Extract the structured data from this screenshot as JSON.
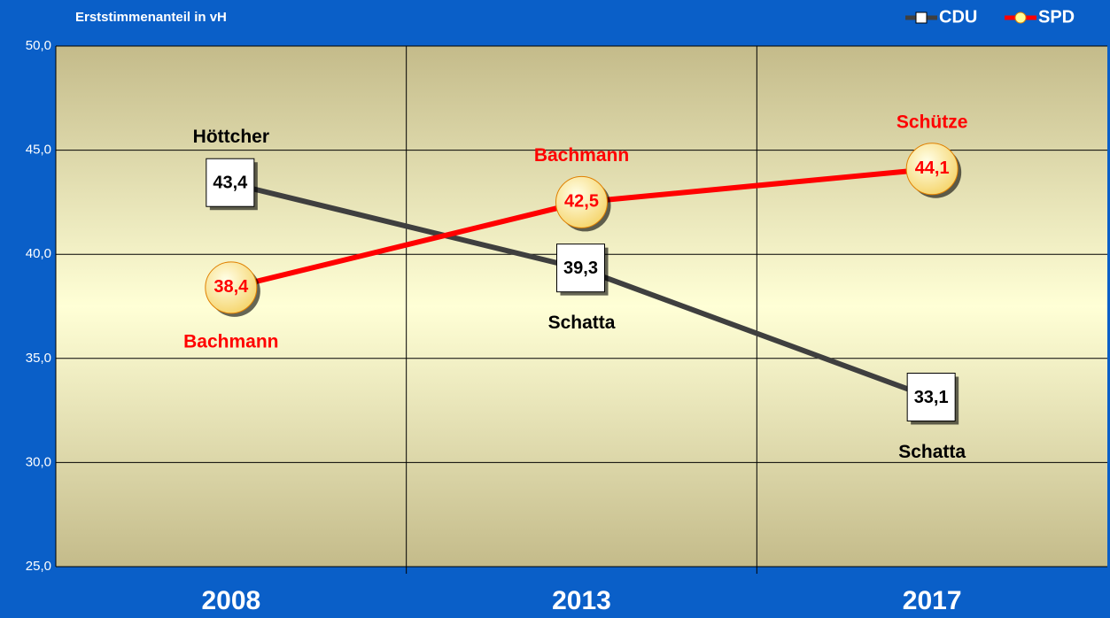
{
  "chart_data": {
    "type": "line",
    "title": "Erststimmenanteil  in vH",
    "categories": [
      "2008",
      "2013",
      "2017"
    ],
    "series": [
      {
        "name": "CDU",
        "color": "#3f3f3f",
        "values": [
          43.4,
          39.3,
          33.1
        ],
        "value_labels": [
          "43,4",
          "39,3",
          "33,1"
        ],
        "candidates": [
          "Höttcher",
          "Schatta",
          "Schatta"
        ],
        "candidate_color": "#000000",
        "marker": "square"
      },
      {
        "name": "SPD",
        "color": "#ff0000",
        "values": [
          38.4,
          42.5,
          44.1
        ],
        "value_labels": [
          "38,4",
          "42,5",
          "44,1"
        ],
        "candidates": [
          "Bachmann",
          "Bachmann",
          "Schütze"
        ],
        "candidate_color": "#ff0000",
        "marker": "circle"
      }
    ],
    "ylim": [
      25,
      50
    ],
    "yticks": [
      {
        "value": 25,
        "label": "25,0"
      },
      {
        "value": 30,
        "label": "30,0"
      },
      {
        "value": 35,
        "label": "35,0"
      },
      {
        "value": 40,
        "label": "40,0"
      },
      {
        "value": 45,
        "label": "45,0"
      },
      {
        "value": 50,
        "label": "50,0"
      }
    ],
    "grid": true,
    "legend": "top-right"
  }
}
